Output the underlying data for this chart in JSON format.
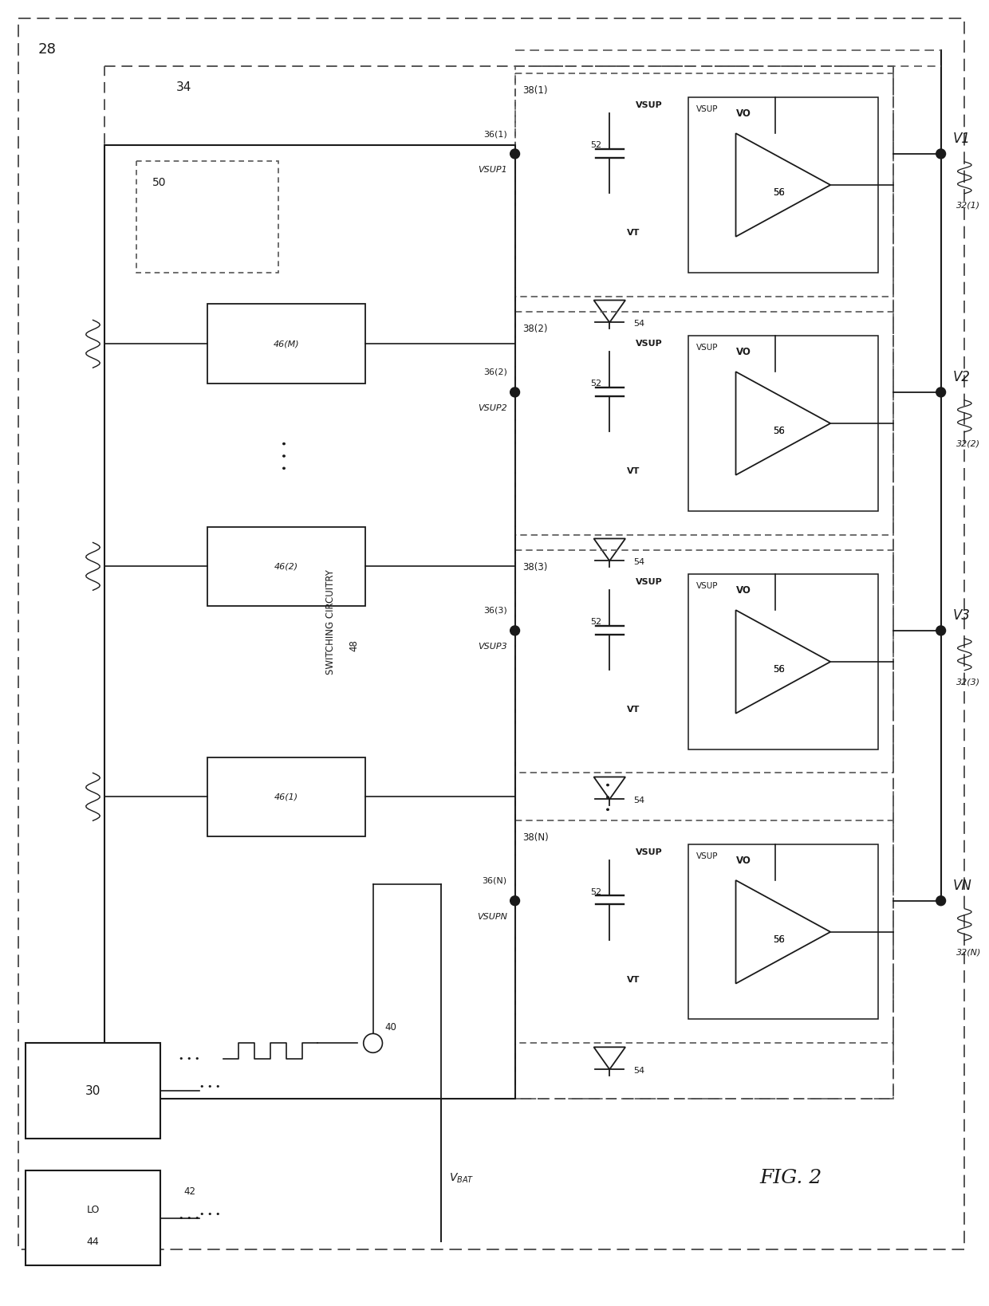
{
  "fig_width": 12.4,
  "fig_height": 16.38,
  "dpi": 100,
  "bg_color": "#ffffff",
  "lc": "#1a1a1a",
  "fig_number": "28",
  "label_34": "34",
  "label_48_line1": "SWITCHING CIRCUITRY",
  "label_48_line2": "48",
  "label_50": "50",
  "amp_boxes": [
    {
      "id": "38(1)",
      "node_id": "36(1)",
      "vsup_node": "VSUP1",
      "node_vsup": "VSUP",
      "vo": "VO",
      "vt": "VT",
      "n52": "52",
      "n56": "56",
      "n54": "54",
      "out": "V1",
      "out_ref": "32(1)"
    },
    {
      "id": "38(2)",
      "node_id": "36(2)",
      "vsup_node": "VSUP2",
      "node_vsup": "VSUP",
      "vo": "VO",
      "vt": "VT",
      "n52": "52",
      "n56": "56",
      "n54": "54",
      "out": "V2",
      "out_ref": "32(2)"
    },
    {
      "id": "38(3)",
      "node_id": "36(3)",
      "vsup_node": "VSUP3",
      "node_vsup": "VSUP",
      "vo": "VO",
      "vt": "VT",
      "n52": "52",
      "n56": "56",
      "n54": "54",
      "out": "V3",
      "out_ref": "32(3)"
    },
    {
      "id": "38(N)",
      "node_id": "36(N)",
      "vsup_node": "VSUPN",
      "node_vsup": "VSUP",
      "vo": "VO",
      "vt": "VT",
      "n52": "52",
      "n56": "56",
      "n54": "54",
      "out": "VN",
      "out_ref": "32(N)"
    }
  ],
  "caps_46": [
    "46(M)",
    "46(2)",
    "46(1)"
  ],
  "lo_label": "LO",
  "lo_num": "44",
  "src_num": "30",
  "node40": "40",
  "node42": "42",
  "vbat_label": "VBAT",
  "fig2_label": "FIG. 2"
}
